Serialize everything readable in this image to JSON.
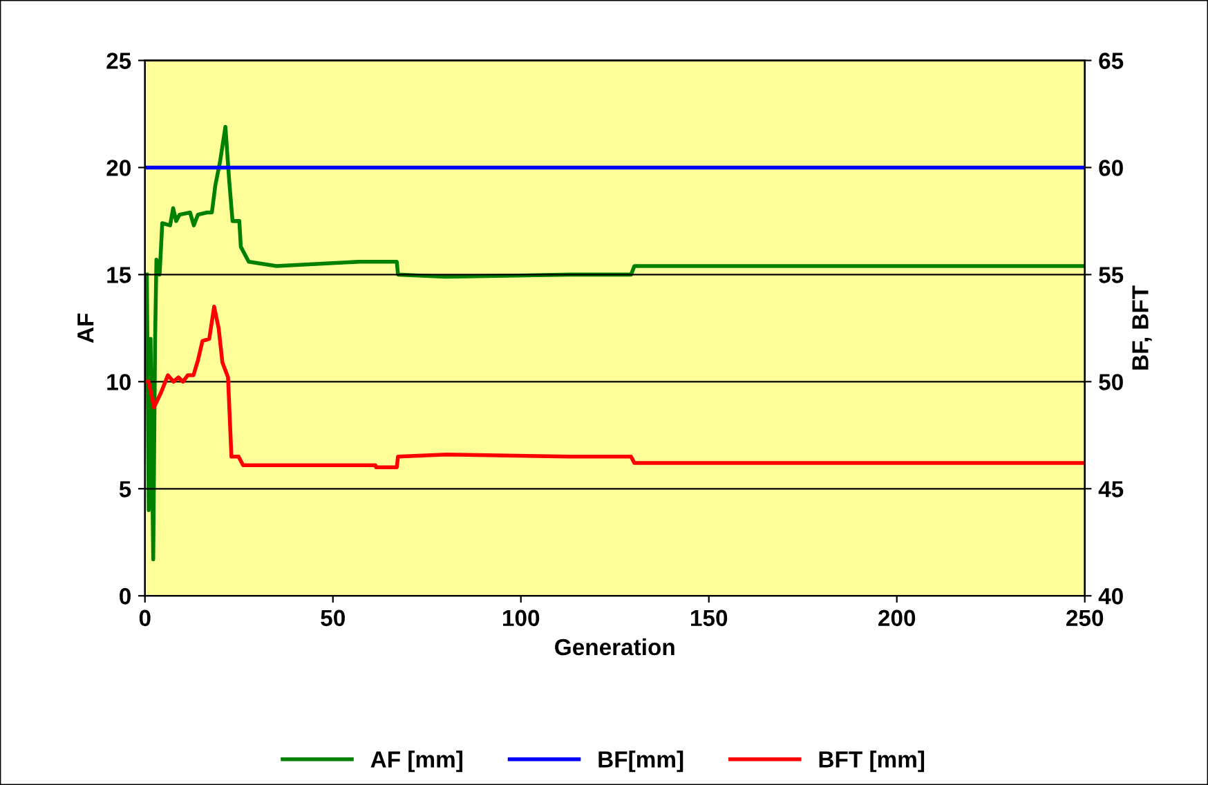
{
  "chart_data": {
    "type": "line",
    "xlabel": "Generation",
    "ylabel": "AF",
    "y2label": "BF, BFT",
    "xlim": [
      0,
      250
    ],
    "xticks": [
      0,
      50,
      100,
      150,
      200,
      250
    ],
    "ylim": [
      0,
      25
    ],
    "yticks": [
      0,
      5,
      10,
      15,
      20,
      25
    ],
    "y2lim": [
      40,
      65
    ],
    "y2ticks": [
      40,
      45,
      50,
      55,
      60,
      65
    ],
    "grid": "y",
    "legend": "bottom",
    "marker": "none",
    "line_style": "solid",
    "series": [
      {
        "name": "AF [mm]",
        "color": "#008000",
        "x": [
          0.5,
          1,
          1.5,
          2.2,
          2.7,
          3.05,
          3.9,
          4.6,
          6.7,
          7.5,
          8.3,
          9.2,
          12,
          13,
          14.1,
          16.5,
          17.8,
          18.75,
          20,
          21.4,
          22.4,
          23.3,
          25.1,
          25.5,
          27.6,
          35,
          57,
          67,
          67.3,
          80,
          113,
          129.3,
          130.2,
          250
        ],
        "values": [
          15.0,
          4.0,
          12.0,
          1.7,
          12.0,
          15.7,
          15.0,
          17.4,
          17.3,
          18.1,
          17.5,
          17.8,
          17.9,
          17.3,
          17.8,
          17.9,
          17.9,
          19.2,
          20.3,
          21.9,
          19.4,
          17.5,
          17.5,
          16.3,
          15.6,
          15.4,
          15.6,
          15.6,
          15.0,
          14.9,
          15.0,
          15.0,
          15.4,
          15.4
        ]
      },
      {
        "name": "BF[mm]",
        "color": "#0000ff",
        "axis": "y2",
        "x": [
          0,
          250
        ],
        "values": [
          60,
          60
        ]
      },
      {
        "name": "BFT [mm]",
        "color": "#ff0000",
        "axis": "y2",
        "x": [
          0,
          1.0,
          2.4,
          4.3,
          6.1,
          7.6,
          8.9,
          10.1,
          11.4,
          12.9,
          14.1,
          15.3,
          17.1,
          18.4,
          19.6,
          20.6,
          22.1,
          23.0,
          24.9,
          26.1,
          61.3,
          61.5,
          67,
          67.3,
          80.3,
          113,
          129.3,
          130.2,
          250
        ],
        "values": [
          50.0,
          50.0,
          48.8,
          49.5,
          50.3,
          50.0,
          50.2,
          50.0,
          50.3,
          50.3,
          51.0,
          51.9,
          52.0,
          53.5,
          52.5,
          50.9,
          50.2,
          46.5,
          46.5,
          46.1,
          46.1,
          46.0,
          46.0,
          46.5,
          46.6,
          46.5,
          46.5,
          46.2,
          46.2
        ]
      }
    ]
  }
}
